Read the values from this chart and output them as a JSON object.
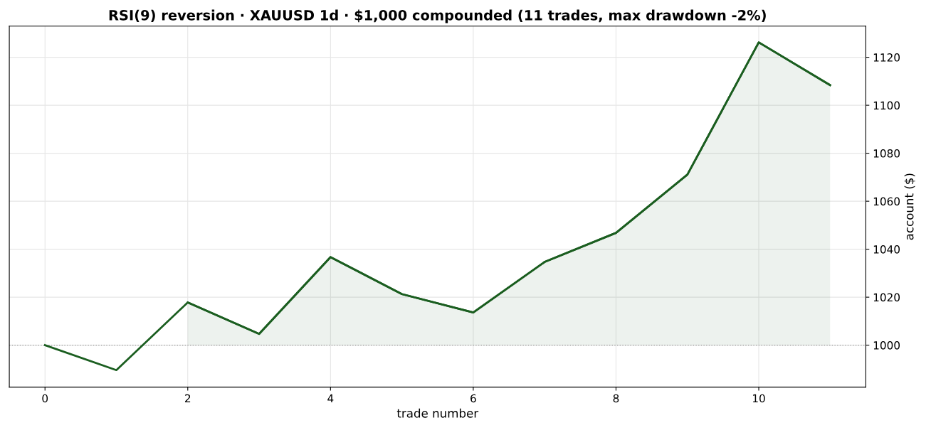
{
  "chart_data": {
    "type": "line",
    "title": "RSI(9) reversion · XAUUSD 1d · $1,000 compounded (11 trades, max drawdown -2%)",
    "xlabel": "trade number",
    "ylabel": "account ($)",
    "x": [
      0,
      1,
      2,
      3,
      4,
      5,
      6,
      7,
      8,
      9,
      10,
      11
    ],
    "series": [
      {
        "color": "#1b5e20",
        "values": [
          1000,
          989.6,
          1017.8,
          1004.7,
          1036.7,
          1021.3,
          1013.6,
          1034.7,
          1046.8,
          1071.1,
          1126.2,
          1108.4
        ]
      },
      {
        "type": "area",
        "color": "#1b5e20",
        "values": [
          null,
          null,
          1017.8,
          1004.7,
          1036.7,
          1021.3,
          1013.6,
          1034.7,
          1046.8,
          1071.1,
          1126.2,
          1108.4
        ]
      }
    ],
    "xlim": [
      -0.5,
      11.5
    ],
    "xticks": [
      0,
      2,
      4,
      6,
      8,
      10
    ],
    "ylim": [
      982.5,
      1133
    ],
    "yticks": [
      1000,
      1020,
      1040,
      1060,
      1080,
      1100,
      1120
    ],
    "ref_lines": [
      {
        "axis": "y",
        "value": 1000,
        "color": "#999999",
        "line_style": "dotted"
      }
    ],
    "grid": true
  }
}
